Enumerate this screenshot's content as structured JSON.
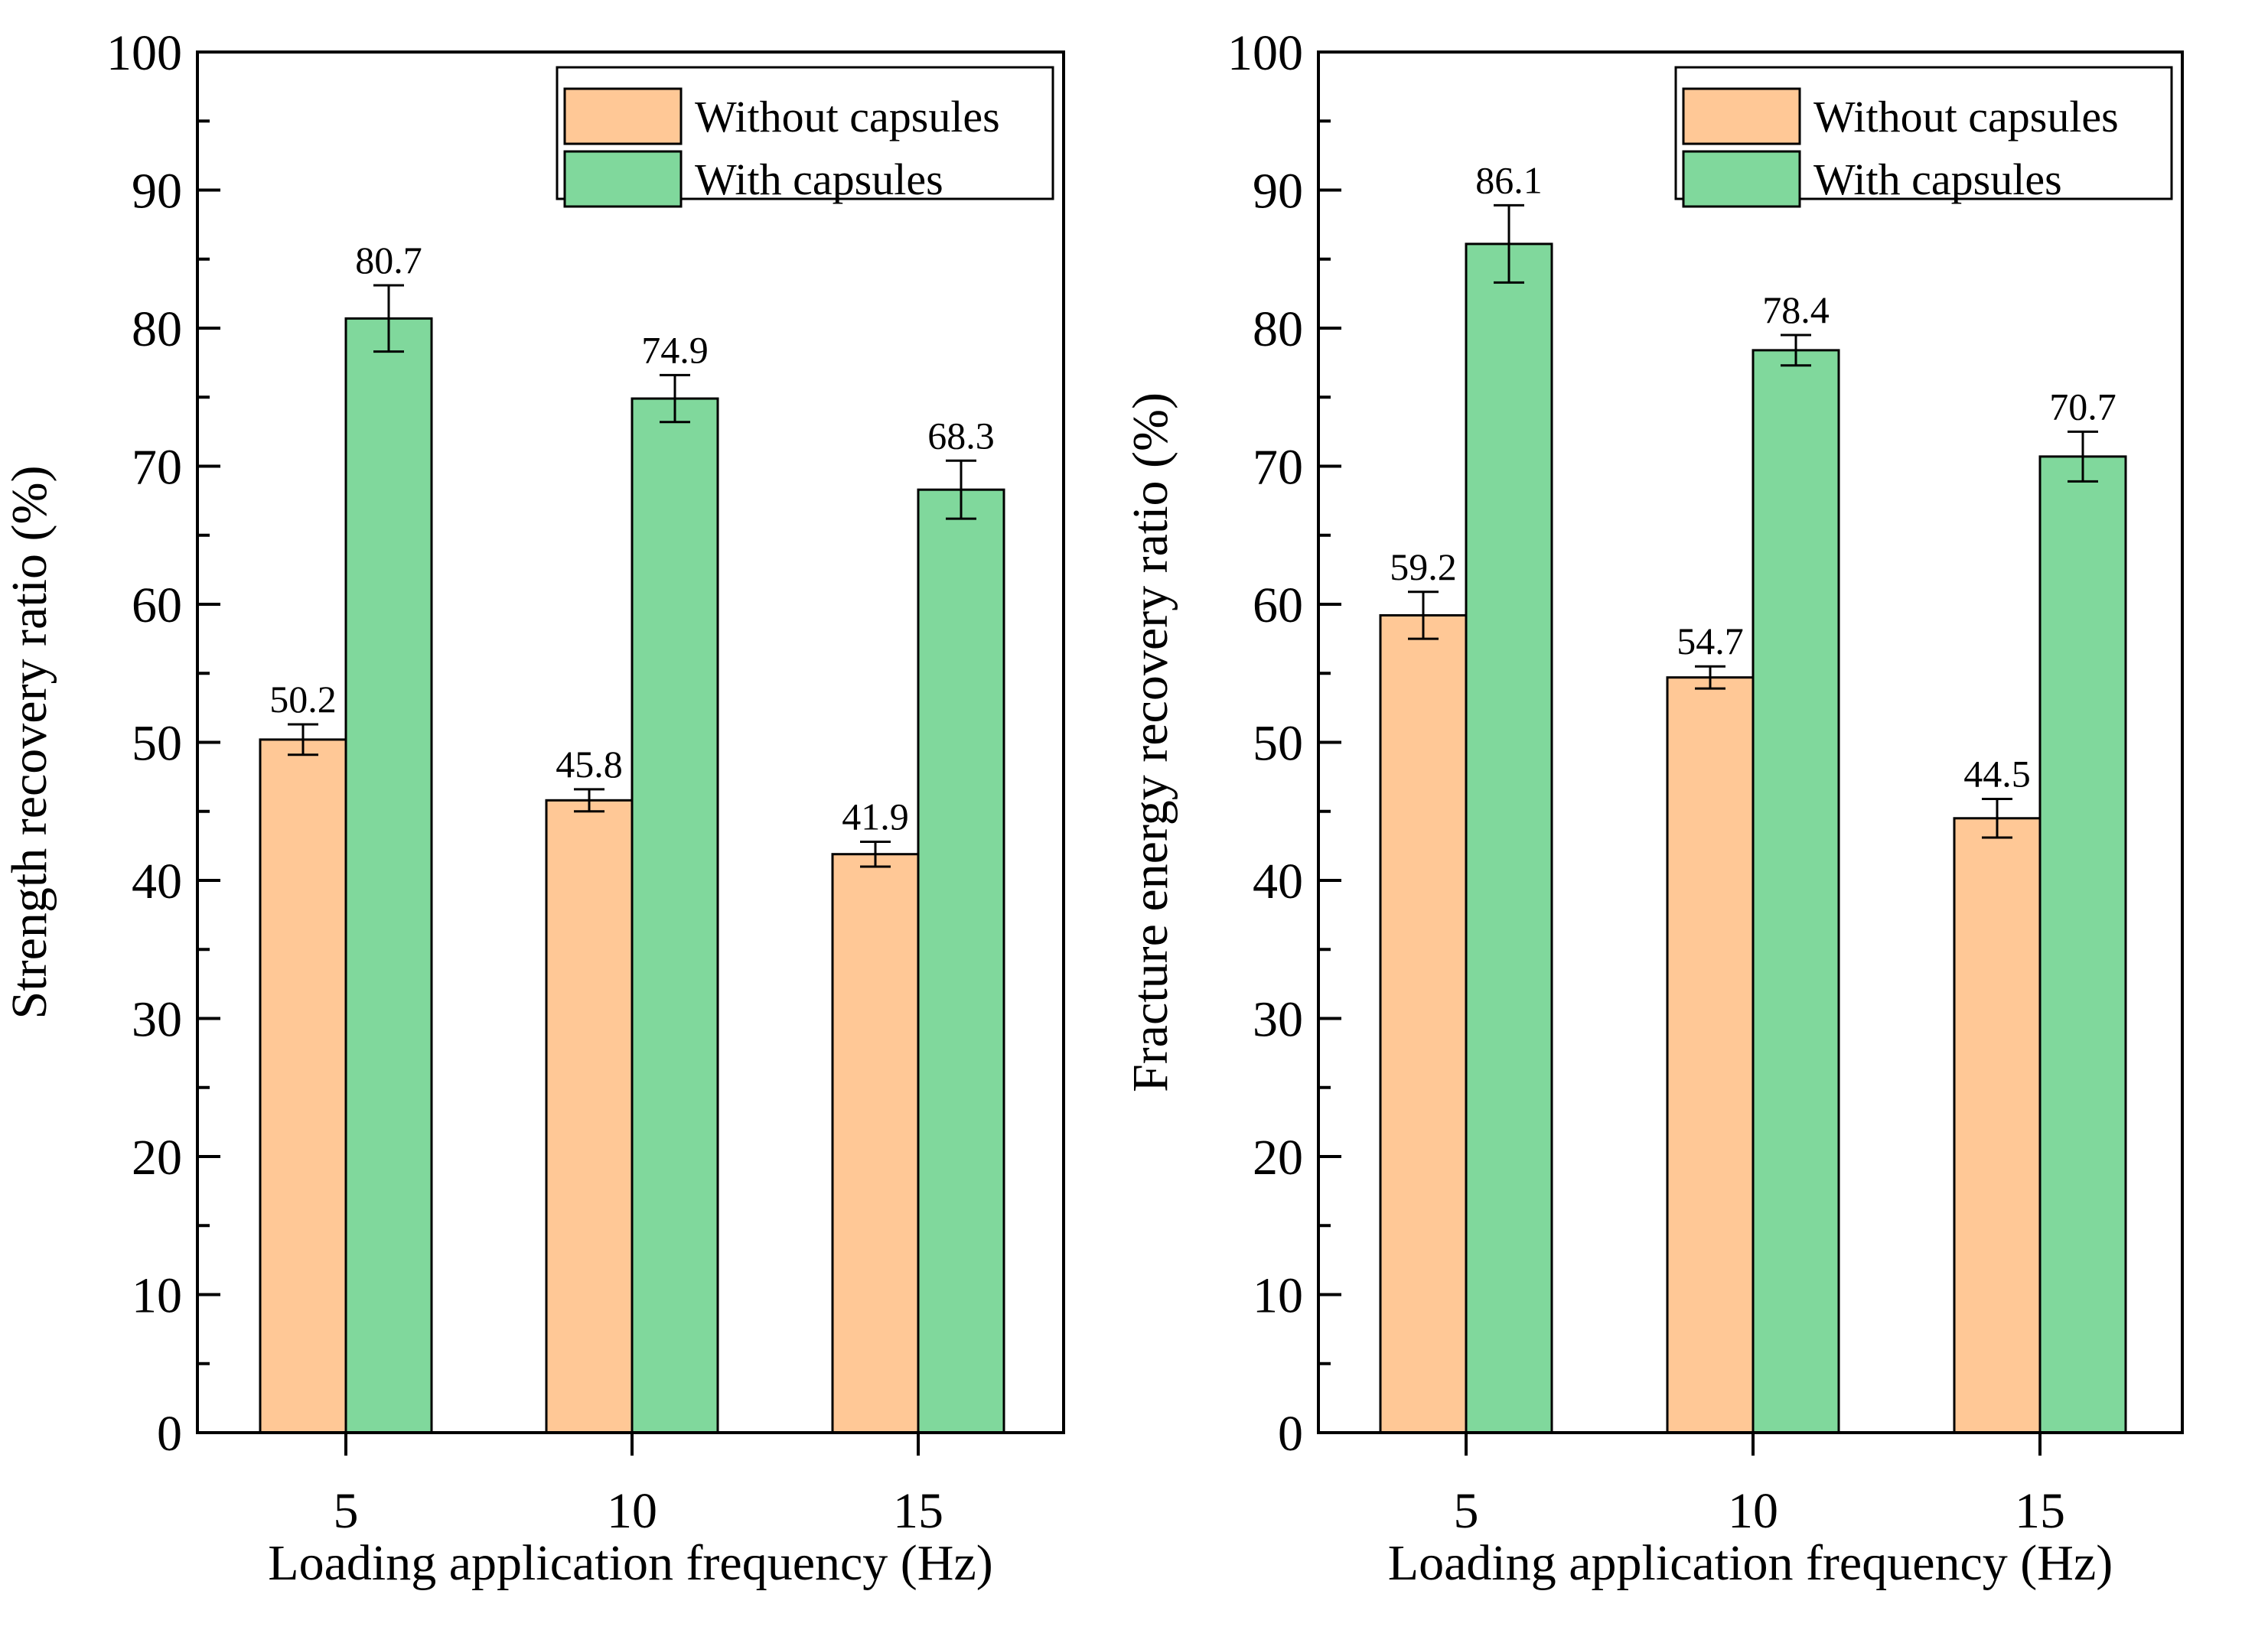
{
  "chart_data": [
    {
      "type": "bar",
      "categories": [
        "5",
        "10",
        "15"
      ],
      "xlabel": "Loading application frequency (Hz)",
      "ylabel": "Strength recovery ratio (%)",
      "ylim": [
        0,
        100
      ],
      "yticks": [
        0,
        10,
        20,
        30,
        40,
        50,
        60,
        70,
        80,
        90,
        100
      ],
      "legend_position": "top-right",
      "series": [
        {
          "name": "Without capsules",
          "color": "#FFC896",
          "values": [
            50.2,
            45.8,
            41.9
          ],
          "labels": [
            "50.2",
            "45.8",
            "41.9"
          ],
          "errors": [
            1.1,
            0.8,
            0.9
          ]
        },
        {
          "name": "With capsules",
          "color": "#80D89C",
          "values": [
            80.7,
            74.9,
            68.3
          ],
          "labels": [
            "80.7",
            "74.9",
            "68.3"
          ],
          "errors": [
            2.4,
            1.7,
            2.1
          ]
        }
      ]
    },
    {
      "type": "bar",
      "categories": [
        "5",
        "10",
        "15"
      ],
      "xlabel": "Loading application frequency (Hz)",
      "ylabel": "Fracture energy recovery ratio (%)",
      "ylim": [
        0,
        100
      ],
      "yticks": [
        0,
        10,
        20,
        30,
        40,
        50,
        60,
        70,
        80,
        90,
        100
      ],
      "legend_position": "top-right",
      "series": [
        {
          "name": "Without capsules",
          "color": "#FFC896",
          "values": [
            59.2,
            54.7,
            44.5
          ],
          "labels": [
            "59.2",
            "54.7",
            "44.5"
          ],
          "errors": [
            1.7,
            0.8,
            1.4
          ]
        },
        {
          "name": "With capsules",
          "color": "#80D89C",
          "values": [
            86.1,
            78.4,
            70.7
          ],
          "labels": [
            "86.1",
            "78.4",
            "70.7"
          ],
          "errors": [
            2.8,
            1.1,
            1.8
          ]
        }
      ]
    }
  ]
}
